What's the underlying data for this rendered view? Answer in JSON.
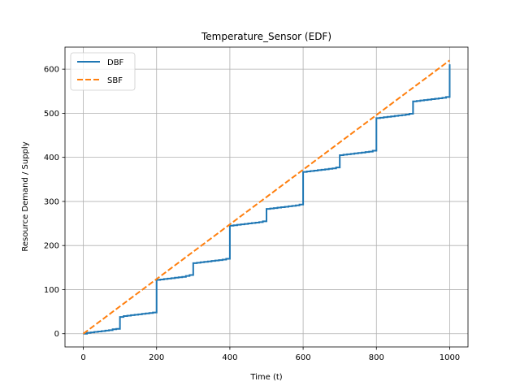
{
  "chart_data": {
    "type": "line",
    "title": "Temperature_Sensor (EDF)",
    "xlabel": "Time (t)",
    "ylabel": "Resource Demand / Supply",
    "xlim": [
      -50,
      1050
    ],
    "ylim": [
      -30,
      650
    ],
    "xticks": [
      0,
      200,
      400,
      600,
      800,
      1000
    ],
    "yticks": [
      0,
      100,
      200,
      300,
      400,
      500,
      600
    ],
    "xtick_labels": [
      "0",
      "200",
      "400",
      "600",
      "800",
      "1000"
    ],
    "ytick_labels": [
      "0",
      "100",
      "200",
      "300",
      "400",
      "500",
      "600"
    ],
    "grid": true,
    "legend_position": "top-left",
    "series": [
      {
        "name": "DBF",
        "color": "#1f77b4",
        "style": "solid",
        "step": true,
        "points": [
          [
            0,
            0
          ],
          [
            10,
            2
          ],
          [
            20,
            3
          ],
          [
            30,
            4
          ],
          [
            40,
            5
          ],
          [
            50,
            6
          ],
          [
            60,
            7
          ],
          [
            70,
            8
          ],
          [
            80,
            10
          ],
          [
            90,
            11
          ],
          [
            100,
            38
          ],
          [
            110,
            40
          ],
          [
            120,
            41
          ],
          [
            130,
            42
          ],
          [
            140,
            43
          ],
          [
            150,
            44
          ],
          [
            160,
            45
          ],
          [
            170,
            46
          ],
          [
            180,
            47
          ],
          [
            190,
            48
          ],
          [
            200,
            122
          ],
          [
            210,
            123
          ],
          [
            220,
            124
          ],
          [
            230,
            125
          ],
          [
            240,
            126
          ],
          [
            250,
            127
          ],
          [
            260,
            128
          ],
          [
            270,
            129
          ],
          [
            280,
            131
          ],
          [
            290,
            133
          ],
          [
            300,
            160
          ],
          [
            310,
            161
          ],
          [
            320,
            162
          ],
          [
            330,
            163
          ],
          [
            340,
            164
          ],
          [
            350,
            165
          ],
          [
            360,
            166
          ],
          [
            370,
            167
          ],
          [
            380,
            168
          ],
          [
            390,
            170
          ],
          [
            400,
            245
          ],
          [
            410,
            246
          ],
          [
            420,
            247
          ],
          [
            430,
            248
          ],
          [
            440,
            249
          ],
          [
            450,
            250
          ],
          [
            460,
            251
          ],
          [
            470,
            252
          ],
          [
            480,
            253
          ],
          [
            490,
            255
          ],
          [
            500,
            283
          ],
          [
            510,
            284
          ],
          [
            520,
            285
          ],
          [
            530,
            286
          ],
          [
            540,
            287
          ],
          [
            550,
            288
          ],
          [
            560,
            289
          ],
          [
            570,
            290
          ],
          [
            580,
            291
          ],
          [
            590,
            293
          ],
          [
            600,
            367
          ],
          [
            610,
            368
          ],
          [
            620,
            369
          ],
          [
            630,
            370
          ],
          [
            640,
            371
          ],
          [
            650,
            372
          ],
          [
            660,
            373
          ],
          [
            670,
            374
          ],
          [
            680,
            375
          ],
          [
            690,
            377
          ],
          [
            700,
            405
          ],
          [
            710,
            406
          ],
          [
            720,
            407
          ],
          [
            730,
            408
          ],
          [
            740,
            409
          ],
          [
            750,
            410
          ],
          [
            760,
            411
          ],
          [
            770,
            412
          ],
          [
            780,
            413
          ],
          [
            790,
            415
          ],
          [
            800,
            489
          ],
          [
            810,
            490
          ],
          [
            820,
            491
          ],
          [
            830,
            492
          ],
          [
            840,
            493
          ],
          [
            850,
            494
          ],
          [
            860,
            495
          ],
          [
            870,
            496
          ],
          [
            880,
            497
          ],
          [
            890,
            499
          ],
          [
            900,
            527
          ],
          [
            910,
            528
          ],
          [
            920,
            529
          ],
          [
            930,
            530
          ],
          [
            940,
            531
          ],
          [
            950,
            532
          ],
          [
            960,
            533
          ],
          [
            970,
            534
          ],
          [
            980,
            535
          ],
          [
            990,
            537
          ],
          [
            1000,
            611
          ]
        ]
      },
      {
        "name": "SBF",
        "color": "#ff7f0e",
        "style": "dashed",
        "step": false,
        "points": [
          [
            0,
            0
          ],
          [
            1000,
            620
          ]
        ]
      }
    ]
  }
}
